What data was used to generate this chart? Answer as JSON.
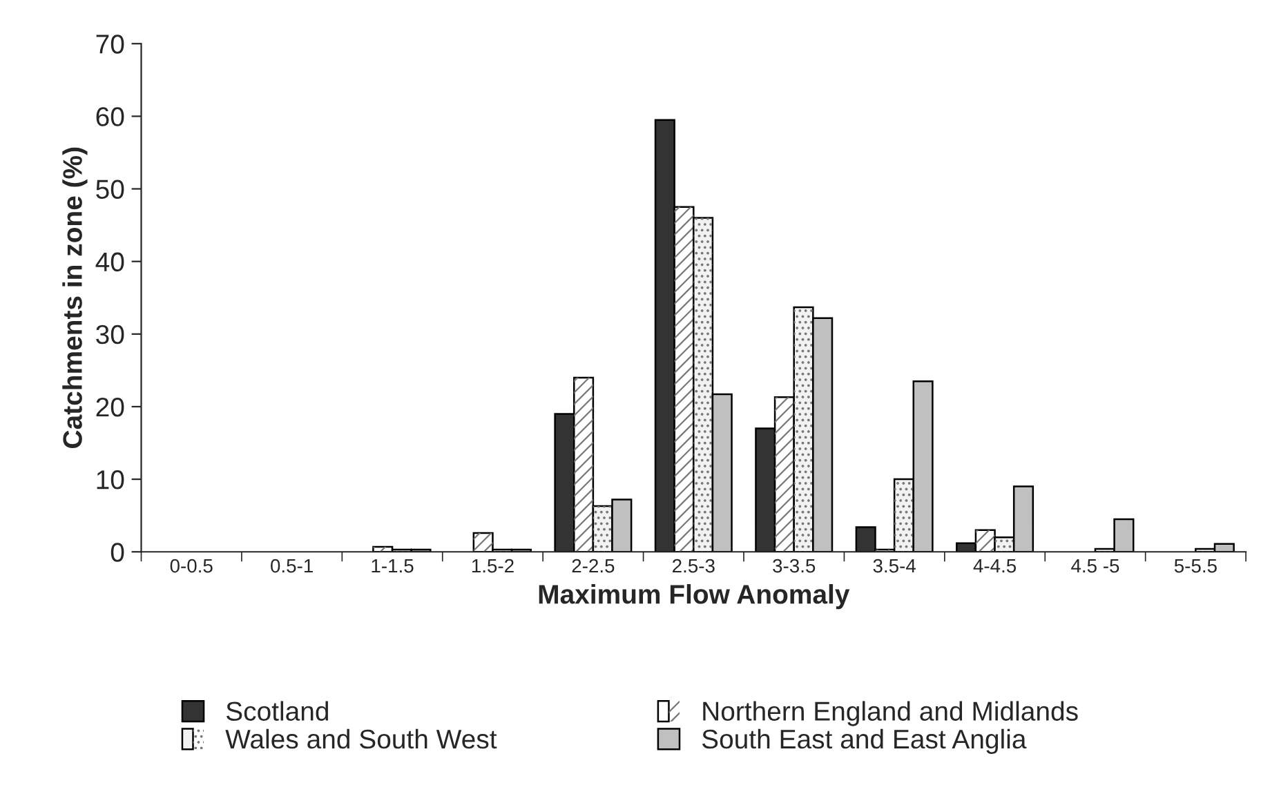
{
  "chart_data": {
    "type": "bar",
    "xlabel": "Maximum Flow Anomaly",
    "ylabel": "Catchments in zone (%)",
    "categories": [
      "0-0.5",
      "0.5-1",
      "1-1.5",
      "1.5-2",
      "2-2.5",
      "2.5-3",
      "3-3.5",
      "3.5-4",
      "4-4.5",
      "4.5 -5",
      "5-5.5"
    ],
    "series": [
      {
        "name": "Scotland",
        "color": "#333333",
        "values": [
          null,
          null,
          null,
          null,
          19,
          59.5,
          17,
          3.4,
          1.2,
          null,
          null
        ]
      },
      {
        "name": "Northern England and Midlands",
        "color": "#ffffff",
        "values": [
          null,
          null,
          0.7,
          2.6,
          24,
          47.5,
          21.3,
          0.3,
          3,
          null,
          null
        ]
      },
      {
        "name": "Wales and South West",
        "color": "#f2f2f2",
        "values": [
          null,
          null,
          0.3,
          0.3,
          6.3,
          46,
          33.7,
          10,
          2,
          0.4,
          0.4
        ]
      },
      {
        "name": "South East and East Anglia",
        "color": "#c0c0c0",
        "values": [
          null,
          null,
          0.3,
          0.3,
          7.2,
          21.7,
          32.2,
          23.5,
          9,
          4.5,
          1.1
        ]
      }
    ],
    "ylim": [
      0,
      70
    ],
    "yticks": [
      0,
      10,
      20,
      30,
      40,
      50,
      60,
      70
    ],
    "grid": false,
    "legend": "bottom"
  }
}
